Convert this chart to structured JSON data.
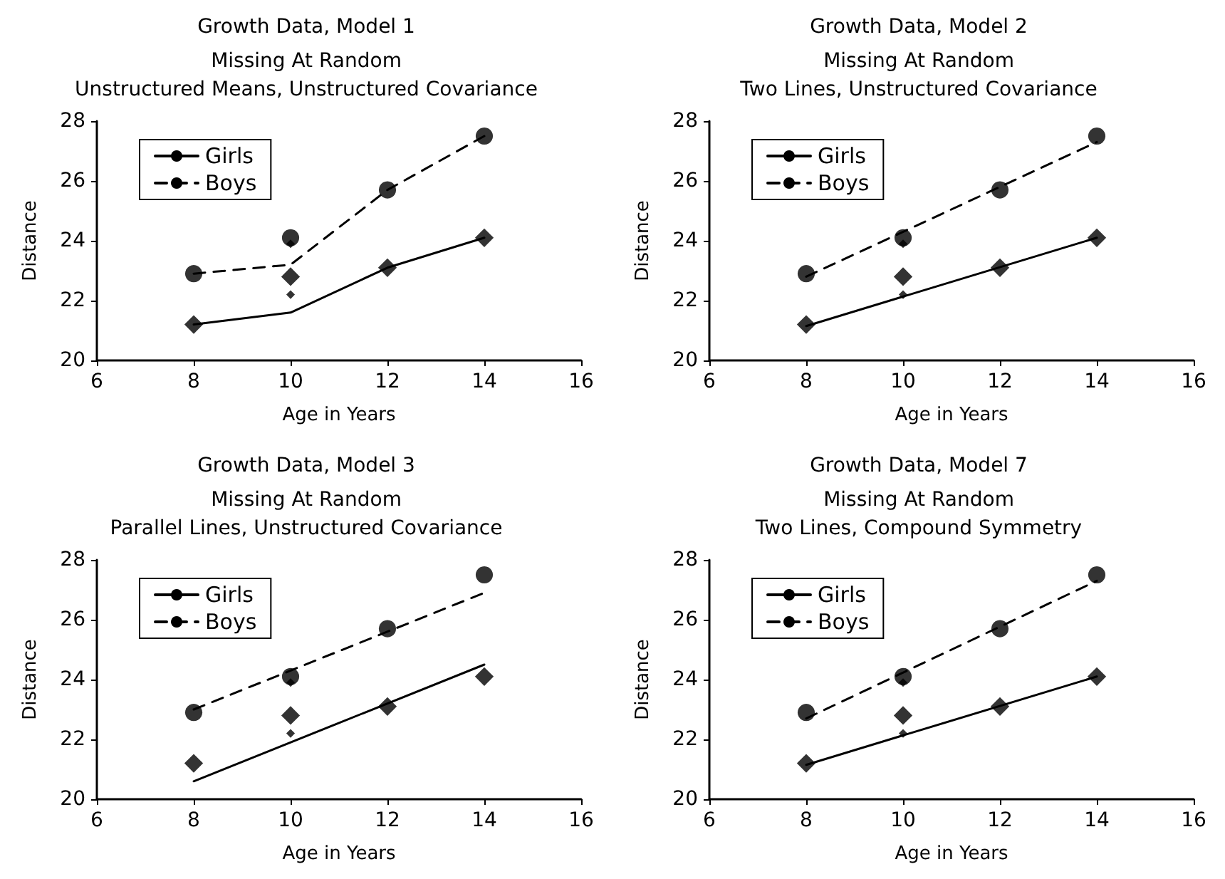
{
  "chart_data": [
    {
      "type": "line",
      "title": "Growth Data, Model 1",
      "subtitle": "Missing At Random\nUnstructured Means, Unstructured Covariance",
      "xlabel": "Age in Years",
      "ylabel": "Distance",
      "xlim": [
        6,
        16
      ],
      "xticks": [
        6,
        8,
        10,
        12,
        14,
        16
      ],
      "ylim": [
        20,
        28
      ],
      "yticks": [
        20,
        22,
        24,
        26,
        28
      ],
      "grid": false,
      "legend": "top left",
      "series": [
        {
          "name": "Girls",
          "type": "line",
          "color": "#000000",
          "line_style": "solid",
          "marker": "none",
          "x": [
            8,
            10,
            12,
            14
          ],
          "values": [
            21.2,
            21.6,
            23.1,
            24.1
          ]
        },
        {
          "name": "Boys",
          "type": "line",
          "color": "#000000",
          "line_style": "dashed",
          "marker": "none",
          "x": [
            8,
            10,
            12,
            14
          ],
          "values": [
            22.9,
            23.2,
            25.7,
            27.5
          ]
        },
        {
          "type": "scatter",
          "color": "#000000",
          "marker": "diamond",
          "x": [
            8,
            10,
            12,
            14
          ],
          "values": [
            21.2,
            22.8,
            23.1,
            24.1
          ],
          "sizes": [
            0.75,
            0.75,
            0.75,
            0.75
          ]
        },
        {
          "type": "scatter",
          "color": "#000000",
          "marker": "circle",
          "x": [
            8,
            10,
            12,
            14
          ],
          "values": [
            22.9,
            24.1,
            25.7,
            27.5
          ],
          "sizes": [
            1,
            1,
            1,
            1
          ]
        },
        {
          "type": "scatter",
          "color": "#000000",
          "marker": "diamond",
          "x": [
            10,
            10
          ],
          "values": [
            22.2,
            23.9
          ],
          "sizes": [
            0.16,
            0.16
          ]
        }
      ]
    },
    {
      "type": "line",
      "title": "Growth Data, Model 2",
      "subtitle": "Missing At Random\nTwo Lines, Unstructured Covariance",
      "xlabel": "Age in Years",
      "ylabel": "Distance",
      "xlim": [
        6,
        16
      ],
      "xticks": [
        6,
        8,
        10,
        12,
        14,
        16
      ],
      "ylim": [
        20,
        28
      ],
      "yticks": [
        20,
        22,
        24,
        26,
        28
      ],
      "grid": false,
      "legend": "top left",
      "series": [
        {
          "name": "Girls",
          "type": "line",
          "color": "#000000",
          "line_style": "solid",
          "marker": "none",
          "x": [
            8,
            14
          ],
          "values": [
            21.15,
            24.1
          ]
        },
        {
          "name": "Boys",
          "type": "line",
          "color": "#000000",
          "line_style": "dashed",
          "marker": "none",
          "x": [
            8,
            14
          ],
          "values": [
            22.8,
            27.3
          ]
        },
        {
          "type": "scatter",
          "color": "#000000",
          "marker": "diamond",
          "x": [
            8,
            10,
            12,
            14
          ],
          "values": [
            21.2,
            22.8,
            23.1,
            24.1
          ],
          "sizes": [
            0.75,
            0.75,
            0.75,
            0.75
          ]
        },
        {
          "type": "scatter",
          "color": "#000000",
          "marker": "circle",
          "x": [
            8,
            10,
            12,
            14
          ],
          "values": [
            22.9,
            24.1,
            25.7,
            27.5
          ],
          "sizes": [
            1,
            1,
            1,
            1
          ]
        },
        {
          "type": "scatter",
          "color": "#000000",
          "marker": "diamond",
          "x": [
            10,
            10
          ],
          "values": [
            22.2,
            23.9
          ],
          "sizes": [
            0.16,
            0.16
          ]
        }
      ]
    },
    {
      "type": "line",
      "title": "Growth Data, Model 3",
      "subtitle": "Missing At Random\nParallel Lines, Unstructured Covariance",
      "xlabel": "Age in Years",
      "ylabel": "Distance",
      "xlim": [
        6,
        16
      ],
      "xticks": [
        6,
        8,
        10,
        12,
        14,
        16
      ],
      "ylim": [
        20,
        28
      ],
      "yticks": [
        20,
        22,
        24,
        26,
        28
      ],
      "grid": false,
      "legend": "top left",
      "series": [
        {
          "name": "Girls",
          "type": "line",
          "color": "#000000",
          "line_style": "solid",
          "marker": "none",
          "x": [
            8,
            14
          ],
          "values": [
            20.6,
            24.5
          ]
        },
        {
          "name": "Boys",
          "type": "line",
          "color": "#000000",
          "line_style": "dashed",
          "marker": "none",
          "x": [
            8,
            14
          ],
          "values": [
            23.0,
            26.9
          ]
        },
        {
          "type": "scatter",
          "color": "#000000",
          "marker": "diamond",
          "x": [
            8,
            10,
            12,
            14
          ],
          "values": [
            21.2,
            22.8,
            23.1,
            24.1
          ],
          "sizes": [
            0.75,
            0.75,
            0.75,
            0.75
          ]
        },
        {
          "type": "scatter",
          "color": "#000000",
          "marker": "circle",
          "x": [
            8,
            10,
            12,
            14
          ],
          "values": [
            22.9,
            24.1,
            25.7,
            27.5
          ],
          "sizes": [
            1,
            1,
            1,
            1
          ]
        },
        {
          "type": "scatter",
          "color": "#000000",
          "marker": "diamond",
          "x": [
            10,
            10
          ],
          "values": [
            22.2,
            23.9
          ],
          "sizes": [
            0.16,
            0.16
          ]
        }
      ]
    },
    {
      "type": "line",
      "title": "Growth Data, Model 7",
      "subtitle": "Missing At Random\nTwo Lines, Compound Symmetry",
      "xlabel": "Age in Years",
      "ylabel": "Distance",
      "xlim": [
        6,
        16
      ],
      "xticks": [
        6,
        8,
        10,
        12,
        14,
        16
      ],
      "ylim": [
        20,
        28
      ],
      "yticks": [
        20,
        22,
        24,
        26,
        28
      ],
      "grid": false,
      "legend": "top left",
      "series": [
        {
          "name": "Girls",
          "type": "line",
          "color": "#000000",
          "line_style": "solid",
          "marker": "none",
          "x": [
            8,
            14
          ],
          "values": [
            21.15,
            24.1
          ]
        },
        {
          "name": "Boys",
          "type": "line",
          "color": "#000000",
          "line_style": "dashed",
          "marker": "none",
          "x": [
            8,
            14
          ],
          "values": [
            22.7,
            27.3
          ]
        },
        {
          "type": "scatter",
          "color": "#000000",
          "marker": "diamond",
          "x": [
            8,
            10,
            12,
            14
          ],
          "values": [
            21.2,
            22.8,
            23.1,
            24.1
          ],
          "sizes": [
            0.75,
            0.75,
            0.75,
            0.75
          ]
        },
        {
          "type": "scatter",
          "color": "#000000",
          "marker": "circle",
          "x": [
            8,
            10,
            12,
            14
          ],
          "values": [
            22.9,
            24.1,
            25.7,
            27.5
          ],
          "sizes": [
            1,
            1,
            1,
            1
          ]
        },
        {
          "type": "scatter",
          "color": "#000000",
          "marker": "diamond",
          "x": [
            10,
            10
          ],
          "values": [
            22.2,
            23.9
          ],
          "sizes": [
            0.16,
            0.16
          ]
        }
      ]
    }
  ]
}
